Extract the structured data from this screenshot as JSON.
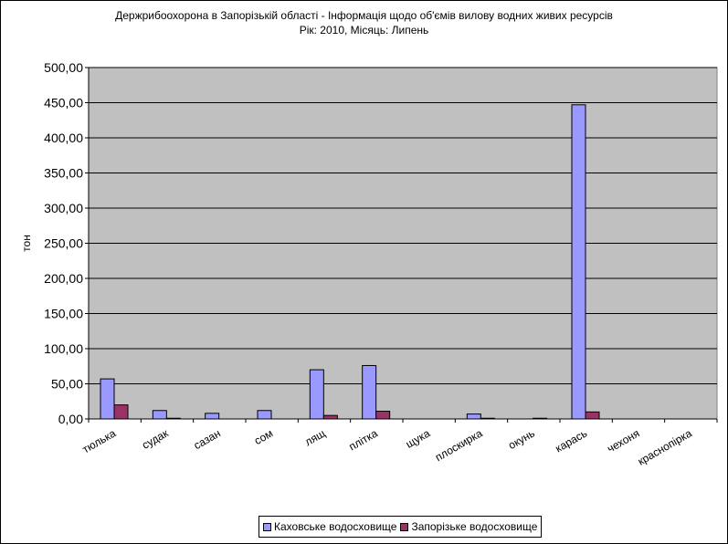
{
  "chart_data": {
    "type": "bar",
    "title": "Держрибоохорона в Запорізькій області - Інформація щодо об'ємів вилову водних живих ресурсів",
    "subtitle": "Рік: 2010, Місяць: Липень",
    "xlabel": "",
    "ylabel": "тон",
    "ylim": [
      0,
      500
    ],
    "yticks": [
      "0,00",
      "50,00",
      "100,00",
      "150,00",
      "200,00",
      "250,00",
      "300,00",
      "350,00",
      "400,00",
      "450,00",
      "500,00"
    ],
    "grid": true,
    "legend": "bottom",
    "plot_background": "#c0c0c0",
    "categories": [
      "тюлька",
      "судак",
      "сазан",
      "сом",
      "лящ",
      "плітка",
      "щука",
      "плоскирка",
      "окунь",
      "карась",
      "чехоня",
      "краснопірка"
    ],
    "series": [
      {
        "name": "Каховське водосховище",
        "color": "#9999ff",
        "values": [
          57,
          12,
          8,
          12,
          70,
          76,
          0,
          7,
          0,
          447,
          0,
          0
        ]
      },
      {
        "name": "Запорізьке водосховище",
        "color": "#993366",
        "values": [
          20,
          1,
          0,
          0,
          5,
          11,
          0,
          1,
          1,
          10,
          0,
          0
        ]
      }
    ]
  }
}
